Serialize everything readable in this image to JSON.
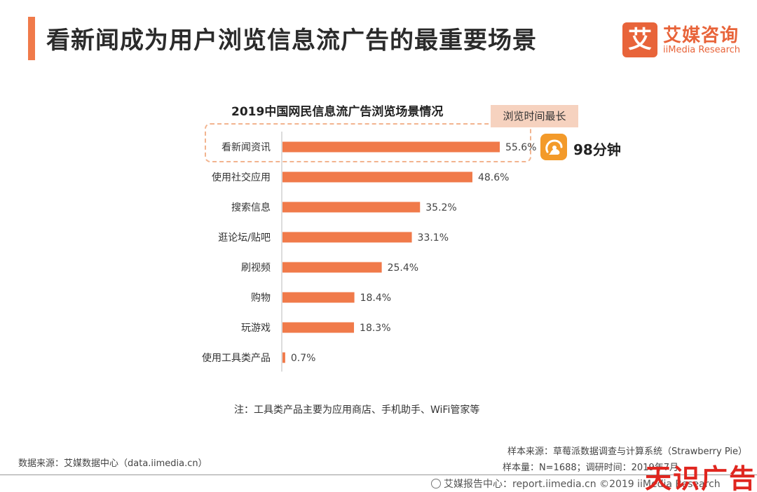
{
  "header": {
    "title": "看新闻成为用户浏览信息流广告的最重要场景",
    "logo_mark": "艾",
    "logo_cn": "艾媒咨询",
    "logo_en": "iiMedia Research"
  },
  "chart_data": {
    "type": "bar",
    "orientation": "horizontal",
    "title": "2019中国网民信息流广告浏览场景情况",
    "categories": [
      "看新闻资讯",
      "使用社交应用",
      "搜索信息",
      "逛论坛/贴吧",
      "刷视频",
      "购物",
      "玩游戏",
      "使用工具类产品"
    ],
    "values": [
      55.6,
      48.6,
      35.2,
      33.1,
      25.4,
      18.4,
      18.3,
      0.7
    ],
    "value_labels": [
      "55.6%",
      "48.6%",
      "35.2%",
      "33.1%",
      "25.4%",
      "18.4%",
      "18.3%",
      "0.7%"
    ],
    "unit": "%",
    "bar_color": "#f07a4a",
    "axis_color": "#bbbbbb",
    "grid": false,
    "legend": false
  },
  "callout": {
    "label": "浏览时间最长",
    "app_icon": "uc-browser-icon",
    "app_time": "98分钟"
  },
  "note": "注：工具类产品主要为应用商店、手机助手、WiFi管家等",
  "footer": {
    "source_left": "数据来源：艾媒数据中心（data.iimedia.cn）",
    "sample_source": "样本来源：草莓派数据调查与计算系统（Strawberry Pie）",
    "sample_meta": "样本量：N=1688；调研时间：2019年7月",
    "copyright": "艾媒报告中心：report.iimedia.cn ©2019 iiMedia Research",
    "watermark": "天识广告"
  }
}
